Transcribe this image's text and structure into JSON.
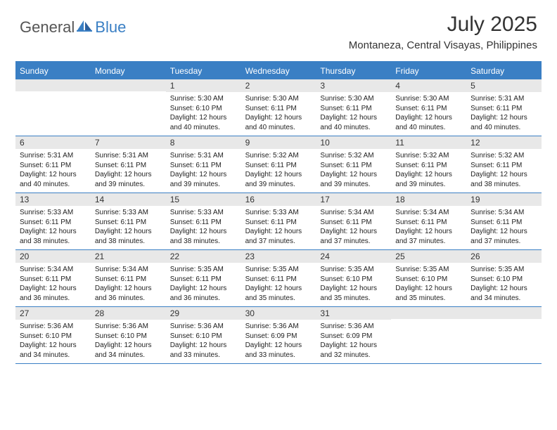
{
  "brand": {
    "general": "General",
    "blue": "Blue"
  },
  "title": "July 2025",
  "location": "Montaneza, Central Visayas, Philippines",
  "colors": {
    "accent": "#3a7fc4",
    "dayBarBg": "#e8e8e8",
    "textDark": "#333333",
    "pageBg": "#ffffff"
  },
  "daysOfWeek": [
    "Sunday",
    "Monday",
    "Tuesday",
    "Wednesday",
    "Thursday",
    "Friday",
    "Saturday"
  ],
  "weeks": [
    [
      null,
      null,
      {
        "n": "1",
        "sr": "Sunrise: 5:30 AM",
        "ss": "Sunset: 6:10 PM",
        "dl": "Daylight: 12 hours and 40 minutes."
      },
      {
        "n": "2",
        "sr": "Sunrise: 5:30 AM",
        "ss": "Sunset: 6:11 PM",
        "dl": "Daylight: 12 hours and 40 minutes."
      },
      {
        "n": "3",
        "sr": "Sunrise: 5:30 AM",
        "ss": "Sunset: 6:11 PM",
        "dl": "Daylight: 12 hours and 40 minutes."
      },
      {
        "n": "4",
        "sr": "Sunrise: 5:30 AM",
        "ss": "Sunset: 6:11 PM",
        "dl": "Daylight: 12 hours and 40 minutes."
      },
      {
        "n": "5",
        "sr": "Sunrise: 5:31 AM",
        "ss": "Sunset: 6:11 PM",
        "dl": "Daylight: 12 hours and 40 minutes."
      }
    ],
    [
      {
        "n": "6",
        "sr": "Sunrise: 5:31 AM",
        "ss": "Sunset: 6:11 PM",
        "dl": "Daylight: 12 hours and 40 minutes."
      },
      {
        "n": "7",
        "sr": "Sunrise: 5:31 AM",
        "ss": "Sunset: 6:11 PM",
        "dl": "Daylight: 12 hours and 39 minutes."
      },
      {
        "n": "8",
        "sr": "Sunrise: 5:31 AM",
        "ss": "Sunset: 6:11 PM",
        "dl": "Daylight: 12 hours and 39 minutes."
      },
      {
        "n": "9",
        "sr": "Sunrise: 5:32 AM",
        "ss": "Sunset: 6:11 PM",
        "dl": "Daylight: 12 hours and 39 minutes."
      },
      {
        "n": "10",
        "sr": "Sunrise: 5:32 AM",
        "ss": "Sunset: 6:11 PM",
        "dl": "Daylight: 12 hours and 39 minutes."
      },
      {
        "n": "11",
        "sr": "Sunrise: 5:32 AM",
        "ss": "Sunset: 6:11 PM",
        "dl": "Daylight: 12 hours and 39 minutes."
      },
      {
        "n": "12",
        "sr": "Sunrise: 5:32 AM",
        "ss": "Sunset: 6:11 PM",
        "dl": "Daylight: 12 hours and 38 minutes."
      }
    ],
    [
      {
        "n": "13",
        "sr": "Sunrise: 5:33 AM",
        "ss": "Sunset: 6:11 PM",
        "dl": "Daylight: 12 hours and 38 minutes."
      },
      {
        "n": "14",
        "sr": "Sunrise: 5:33 AM",
        "ss": "Sunset: 6:11 PM",
        "dl": "Daylight: 12 hours and 38 minutes."
      },
      {
        "n": "15",
        "sr": "Sunrise: 5:33 AM",
        "ss": "Sunset: 6:11 PM",
        "dl": "Daylight: 12 hours and 38 minutes."
      },
      {
        "n": "16",
        "sr": "Sunrise: 5:33 AM",
        "ss": "Sunset: 6:11 PM",
        "dl": "Daylight: 12 hours and 37 minutes."
      },
      {
        "n": "17",
        "sr": "Sunrise: 5:34 AM",
        "ss": "Sunset: 6:11 PM",
        "dl": "Daylight: 12 hours and 37 minutes."
      },
      {
        "n": "18",
        "sr": "Sunrise: 5:34 AM",
        "ss": "Sunset: 6:11 PM",
        "dl": "Daylight: 12 hours and 37 minutes."
      },
      {
        "n": "19",
        "sr": "Sunrise: 5:34 AM",
        "ss": "Sunset: 6:11 PM",
        "dl": "Daylight: 12 hours and 37 minutes."
      }
    ],
    [
      {
        "n": "20",
        "sr": "Sunrise: 5:34 AM",
        "ss": "Sunset: 6:11 PM",
        "dl": "Daylight: 12 hours and 36 minutes."
      },
      {
        "n": "21",
        "sr": "Sunrise: 5:34 AM",
        "ss": "Sunset: 6:11 PM",
        "dl": "Daylight: 12 hours and 36 minutes."
      },
      {
        "n": "22",
        "sr": "Sunrise: 5:35 AM",
        "ss": "Sunset: 6:11 PM",
        "dl": "Daylight: 12 hours and 36 minutes."
      },
      {
        "n": "23",
        "sr": "Sunrise: 5:35 AM",
        "ss": "Sunset: 6:11 PM",
        "dl": "Daylight: 12 hours and 35 minutes."
      },
      {
        "n": "24",
        "sr": "Sunrise: 5:35 AM",
        "ss": "Sunset: 6:10 PM",
        "dl": "Daylight: 12 hours and 35 minutes."
      },
      {
        "n": "25",
        "sr": "Sunrise: 5:35 AM",
        "ss": "Sunset: 6:10 PM",
        "dl": "Daylight: 12 hours and 35 minutes."
      },
      {
        "n": "26",
        "sr": "Sunrise: 5:35 AM",
        "ss": "Sunset: 6:10 PM",
        "dl": "Daylight: 12 hours and 34 minutes."
      }
    ],
    [
      {
        "n": "27",
        "sr": "Sunrise: 5:36 AM",
        "ss": "Sunset: 6:10 PM",
        "dl": "Daylight: 12 hours and 34 minutes."
      },
      {
        "n": "28",
        "sr": "Sunrise: 5:36 AM",
        "ss": "Sunset: 6:10 PM",
        "dl": "Daylight: 12 hours and 34 minutes."
      },
      {
        "n": "29",
        "sr": "Sunrise: 5:36 AM",
        "ss": "Sunset: 6:10 PM",
        "dl": "Daylight: 12 hours and 33 minutes."
      },
      {
        "n": "30",
        "sr": "Sunrise: 5:36 AM",
        "ss": "Sunset: 6:09 PM",
        "dl": "Daylight: 12 hours and 33 minutes."
      },
      {
        "n": "31",
        "sr": "Sunrise: 5:36 AM",
        "ss": "Sunset: 6:09 PM",
        "dl": "Daylight: 12 hours and 32 minutes."
      },
      null,
      null
    ]
  ]
}
